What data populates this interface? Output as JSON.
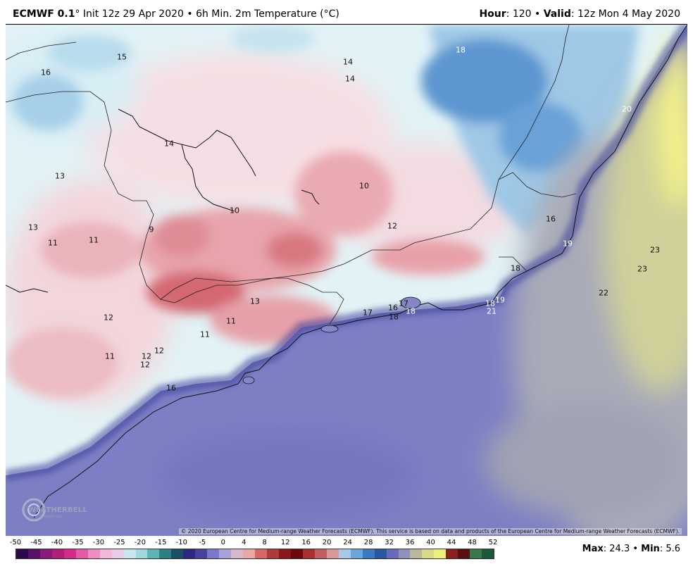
{
  "header": {
    "model": "ECMWF 0.1",
    "init": "° Init 12z 29 Apr 2020 • 6h Min. 2m Temperature (°C)",
    "hour_label": "Hour",
    "hour_value": ": 120 • ",
    "valid_label": "Valid",
    "valid_value": ": 12z Mon 4 May 2020"
  },
  "map": {
    "labels": [
      {
        "text": "15",
        "light": false
      },
      {
        "text": "16",
        "light": false
      },
      {
        "text": "14",
        "light": false
      },
      {
        "text": "14",
        "light": false
      },
      {
        "text": "18",
        "light": true
      },
      {
        "text": "20",
        "light": true
      },
      {
        "text": "14",
        "light": false
      },
      {
        "text": "13",
        "light": false
      },
      {
        "text": "10",
        "light": false
      },
      {
        "text": "10",
        "light": false
      },
      {
        "text": "12",
        "light": false
      },
      {
        "text": "16",
        "light": false
      },
      {
        "text": "13",
        "light": false
      },
      {
        "text": "9",
        "light": false
      },
      {
        "text": "11",
        "light": false
      },
      {
        "text": "11",
        "light": false
      },
      {
        "text": "19",
        "light": true
      },
      {
        "text": "23",
        "light": false
      },
      {
        "text": "18",
        "light": false
      },
      {
        "text": "23",
        "light": false
      },
      {
        "text": "22",
        "light": false
      },
      {
        "text": "13",
        "light": false
      },
      {
        "text": "17",
        "light": false
      },
      {
        "text": "16",
        "light": false
      },
      {
        "text": "18",
        "light": true
      },
      {
        "text": "18",
        "light": true
      },
      {
        "text": "19",
        "light": true
      },
      {
        "text": "21",
        "light": true
      },
      {
        "text": "17",
        "light": false
      },
      {
        "text": "18",
        "light": false
      },
      {
        "text": "12",
        "light": false
      },
      {
        "text": "11",
        "light": false
      },
      {
        "text": "11",
        "light": false
      },
      {
        "text": "11",
        "light": false
      },
      {
        "text": "12",
        "light": false
      },
      {
        "text": "12",
        "light": false
      },
      {
        "text": "12",
        "light": false
      },
      {
        "text": "16",
        "light": false
      }
    ],
    "copyright": "© 2020 European Centre for Medium-range Weather Forecasts (ECMWF). This service is based on data and products of the European Centre for Medium-range Weather Forecasts (ECMWF).",
    "logo_text": "WEATHERBELL",
    "logo_sub": "Analytics LLC"
  },
  "colorbar": {
    "ticks": [
      "-50",
      "-45",
      "-40",
      "-35",
      "-30",
      "-25",
      "-20",
      "-15",
      "-10",
      "-5",
      "0",
      "4",
      "8",
      "12",
      "16",
      "20",
      "24",
      "28",
      "32",
      "36",
      "40",
      "44",
      "48",
      "52"
    ],
    "colors": [
      "#2a0a4a",
      "#5a0f6a",
      "#8a1a7a",
      "#b0207a",
      "#d42a8a",
      "#e35aa5",
      "#ee8ec0",
      "#f2b8d8",
      "#e8cde8",
      "#c8e6ee",
      "#9fd8de",
      "#5fb3b3",
      "#2d7f85",
      "#1a4f66",
      "#2b2a80",
      "#4b3fa0",
      "#7a78c8",
      "#a9a2d8",
      "#d8b8c8",
      "#e8a8a8",
      "#d46868",
      "#b03a3a",
      "#8a1818",
      "#6a0a10",
      "#a83030",
      "#c06060",
      "#d89898",
      "#a9c8e8",
      "#6aa6d8",
      "#3a7ac0",
      "#2a58a0",
      "#6a6ab8",
      "#9090b8",
      "#b8b89a",
      "#d8d88a",
      "#eeee7a",
      "#8a2020",
      "#5a1010",
      "#3a7a4a",
      "#1a5a3a"
    ],
    "max_label": "Max",
    "max_value": ": 24.3 • ",
    "min_label": "Min",
    "min_value": ": 5.6"
  }
}
